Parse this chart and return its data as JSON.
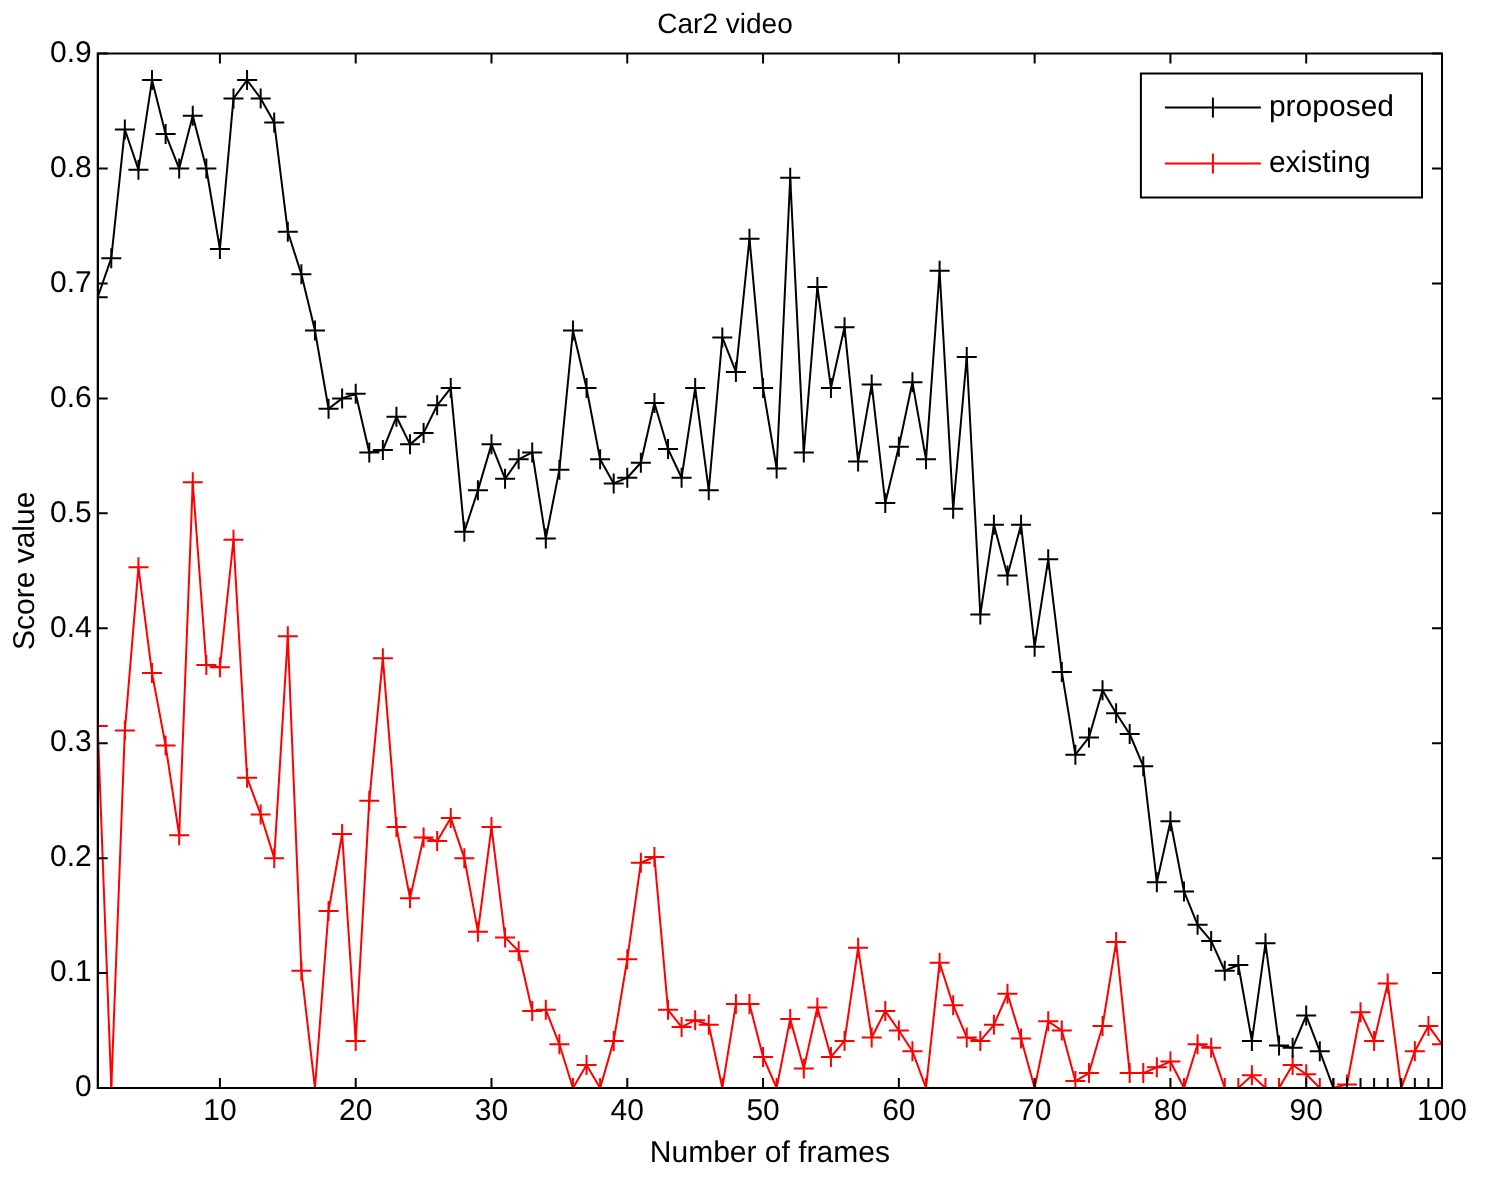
{
  "chart_data": {
    "type": "line",
    "title": "Car2 video",
    "xlabel": "Number of frames",
    "ylabel": "Score value",
    "x": [
      1,
      2,
      3,
      4,
      5,
      6,
      7,
      8,
      9,
      10,
      11,
      12,
      13,
      14,
      15,
      16,
      17,
      18,
      19,
      20,
      21,
      22,
      23,
      24,
      25,
      26,
      27,
      28,
      29,
      30,
      31,
      32,
      33,
      34,
      35,
      36,
      37,
      38,
      39,
      40,
      41,
      42,
      43,
      44,
      45,
      46,
      47,
      48,
      49,
      50,
      51,
      52,
      53,
      54,
      55,
      56,
      57,
      58,
      59,
      60,
      61,
      62,
      63,
      64,
      65,
      66,
      67,
      68,
      69,
      70,
      71,
      72,
      73,
      74,
      75,
      76,
      77,
      78,
      79,
      80,
      81,
      82,
      83,
      84,
      85,
      86,
      87,
      88,
      89,
      90,
      91,
      92,
      93,
      94,
      95,
      96,
      97,
      98,
      99,
      100
    ],
    "series": [
      {
        "name": "proposed",
        "color": "#000000",
        "values": [
          0.688,
          0.722,
          0.834,
          0.799,
          0.877,
          0.83,
          0.8,
          0.846,
          0.8,
          0.73,
          0.861,
          0.877,
          0.861,
          0.84,
          0.745,
          0.708,
          0.659,
          0.591,
          0.6,
          0.604,
          0.553,
          0.555,
          0.584,
          0.56,
          0.57,
          0.594,
          0.609,
          0.484,
          0.52,
          0.56,
          0.53,
          0.547,
          0.553,
          0.478,
          0.538,
          0.659,
          0.609,
          0.547,
          0.526,
          0.531,
          0.544,
          0.596,
          0.556,
          0.531,
          0.609,
          0.52,
          0.653,
          0.623,
          0.739,
          0.609,
          0.539,
          0.792,
          0.553,
          0.697,
          0.609,
          0.662,
          0.545,
          0.612,
          0.509,
          0.558,
          0.614,
          0.547,
          0.711,
          0.504,
          0.636,
          0.412,
          0.49,
          0.446,
          0.49,
          0.384,
          0.46,
          0.362,
          0.29,
          0.305,
          0.346,
          0.326,
          0.308,
          0.28,
          0.179,
          0.232,
          0.171,
          0.142,
          0.128,
          0.102,
          0.107,
          0.041,
          0.126,
          0.037,
          0.035,
          0.063,
          0.032,
          0,
          0,
          0,
          0,
          0,
          0,
          0,
          0,
          0
        ]
      },
      {
        "name": "existing",
        "color": "#ff0000",
        "values": [
          0.315,
          0,
          0.311,
          0.453,
          0.361,
          0.298,
          0.22,
          0.527,
          0.368,
          0.366,
          0.477,
          0.27,
          0.238,
          0.2,
          0.393,
          0.102,
          0,
          0.154,
          0.221,
          0.041,
          0.25,
          0.374,
          0.227,
          0.165,
          0.218,
          0.215,
          0.235,
          0.2,
          0.136,
          0.227,
          0.131,
          0.119,
          0.067,
          0.068,
          0.038,
          0,
          0.02,
          0,
          0.041,
          0.112,
          0.196,
          0.201,
          0.068,
          0.053,
          0.059,
          0.055,
          0,
          0.073,
          0.073,
          0.027,
          0,
          0.06,
          0.017,
          0.07,
          0.027,
          0.041,
          0.122,
          0.044,
          0.067,
          0.05,
          0.032,
          0,
          0.109,
          0.072,
          0.044,
          0.041,
          0.055,
          0.082,
          0.043,
          0,
          0.058,
          0.05,
          0.006,
          0.013,
          0.054,
          0.127,
          0.013,
          0.013,
          0.018,
          0.023,
          0,
          0.038,
          0.035,
          0,
          0,
          0.011,
          0,
          0,
          0.02,
          0.012,
          0,
          0,
          0.003,
          0.066,
          0.041,
          0.091,
          0,
          0.032,
          0.054,
          0.038
        ]
      }
    ],
    "xlim": [
      1,
      100
    ],
    "xticks": [
      10,
      20,
      30,
      40,
      50,
      60,
      70,
      80,
      90,
      100
    ],
    "ylim": [
      0,
      0.9
    ],
    "yticks": [
      0,
      0.1,
      0.2,
      0.3,
      0.4,
      0.5,
      0.6,
      0.7,
      0.8,
      0.9
    ],
    "grid": false,
    "legend": "top right",
    "marker": "cross",
    "line_style": "solid"
  }
}
